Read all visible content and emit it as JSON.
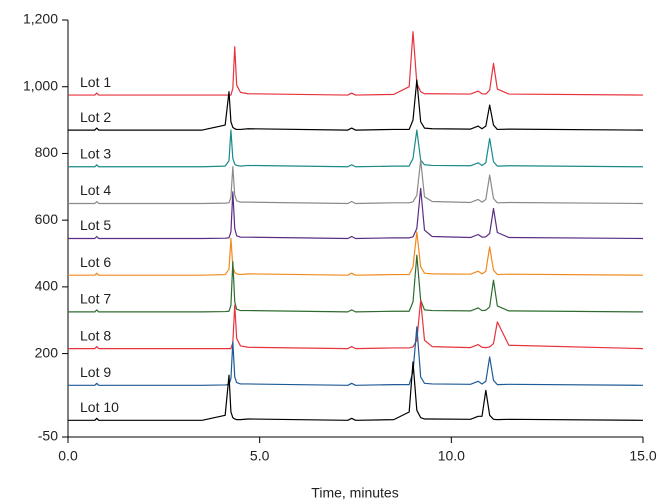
{
  "chart_data": {
    "type": "line",
    "x_label": "Time, minutes",
    "x": [
      0,
      0.7,
      0.75,
      0.8,
      3.5,
      4.1,
      4.2,
      4.25,
      4.3,
      4.35,
      4.4,
      4.5,
      4.7,
      7.3,
      7.4,
      7.5,
      8.5,
      8.9,
      9.0,
      9.1,
      9.2,
      9.3,
      9.5,
      10.5,
      10.7,
      10.8,
      10.9,
      11.0,
      11.1,
      11.2,
      11.5,
      15
    ],
    "xlim": [
      0,
      15
    ],
    "xticks": [
      {
        "value": 0,
        "label": "0.0"
      },
      {
        "value": 5,
        "label": "5.0"
      },
      {
        "value": 10,
        "label": "10.0"
      },
      {
        "value": 15,
        "label": "15.0"
      }
    ],
    "ylim": [
      -50,
      1200
    ],
    "yticks": [
      -50,
      200,
      400,
      600,
      800,
      {
        "value": 1000,
        "label": "1,000"
      },
      {
        "value": 1200,
        "label": "1,200"
      }
    ],
    "grid": false,
    "series": [
      {
        "name": "Lot 1",
        "color": "#e8323c",
        "values": [
          975,
          975,
          981,
          975,
          975,
          975,
          975,
          975,
          995,
          1120,
          1005,
          983,
          979,
          975,
          981,
          975,
          977,
          1000,
          1165,
          1010,
          985,
          979,
          979,
          978,
          987,
          979,
          978,
          990,
          1070,
          993,
          978,
          975
        ]
      },
      {
        "name": "Lot 2",
        "color": "#000000",
        "values": [
          870,
          870,
          876,
          870,
          870,
          885,
          985,
          895,
          878,
          874,
          872,
          872,
          874,
          870,
          876,
          870,
          872,
          872,
          900,
          1020,
          895,
          876,
          874,
          873,
          882,
          874,
          882,
          945,
          885,
          872,
          873,
          870
        ]
      },
      {
        "name": "Lot 3",
        "color": "#1a8a8a",
        "values": [
          760,
          760,
          766,
          760,
          760,
          762,
          778,
          870,
          785,
          768,
          764,
          762,
          764,
          760,
          766,
          760,
          762,
          762,
          785,
          870,
          780,
          766,
          764,
          763,
          772,
          764,
          772,
          845,
          775,
          762,
          763,
          760
        ]
      },
      {
        "name": "Lot 4",
        "color": "#8a8a8a",
        "values": [
          650,
          650,
          656,
          650,
          650,
          651,
          652,
          668,
          760,
          675,
          658,
          654,
          654,
          650,
          656,
          650,
          652,
          652,
          655,
          675,
          780,
          670,
          656,
          653,
          662,
          654,
          662,
          735,
          665,
          652,
          653,
          650
        ]
      },
      {
        "name": "Lot 5",
        "color": "#5b2d82",
        "values": [
          545,
          545,
          551,
          545,
          545,
          546,
          547,
          565,
          685,
          575,
          553,
          549,
          549,
          545,
          551,
          545,
          547,
          547,
          550,
          575,
          695,
          570,
          551,
          548,
          557,
          549,
          550,
          560,
          635,
          563,
          548,
          545
        ]
      },
      {
        "name": "Lot 6",
        "color": "#ef8a1f",
        "values": [
          435,
          435,
          441,
          435,
          435,
          437,
          453,
          545,
          460,
          443,
          439,
          437,
          439,
          435,
          441,
          435,
          437,
          437,
          460,
          565,
          460,
          441,
          439,
          438,
          447,
          439,
          447,
          520,
          450,
          437,
          438,
          435
        ]
      },
      {
        "name": "Lot 7",
        "color": "#2f6b2f",
        "values": [
          325,
          325,
          331,
          325,
          325,
          326,
          327,
          345,
          475,
          355,
          333,
          329,
          329,
          325,
          331,
          325,
          327,
          327,
          355,
          495,
          360,
          331,
          329,
          328,
          337,
          329,
          330,
          340,
          420,
          343,
          328,
          325
        ]
      },
      {
        "name": "Lot 8",
        "color": "#e8323c",
        "values": [
          215,
          215,
          221,
          215,
          215,
          215,
          215,
          215,
          233,
          345,
          245,
          223,
          219,
          215,
          221,
          215,
          217,
          217,
          220,
          240,
          360,
          240,
          221,
          218,
          227,
          219,
          218,
          220,
          230,
          295,
          225,
          215
        ]
      },
      {
        "name": "Lot 9",
        "color": "#1f5a96",
        "values": [
          105,
          105,
          111,
          105,
          105,
          106,
          107,
          125,
          235,
          130,
          113,
          109,
          109,
          105,
          111,
          105,
          107,
          107,
          145,
          280,
          130,
          111,
          109,
          108,
          117,
          109,
          117,
          190,
          120,
          107,
          108,
          105
        ]
      },
      {
        "name": "Lot 10",
        "color": "#000000",
        "values": [
          0,
          0,
          6,
          0,
          0,
          15,
          135,
          25,
          8,
          4,
          2,
          2,
          4,
          0,
          6,
          0,
          2,
          25,
          175,
          30,
          8,
          4,
          4,
          3,
          12,
          12,
          90,
          15,
          3,
          2,
          3,
          0
        ]
      }
    ]
  }
}
